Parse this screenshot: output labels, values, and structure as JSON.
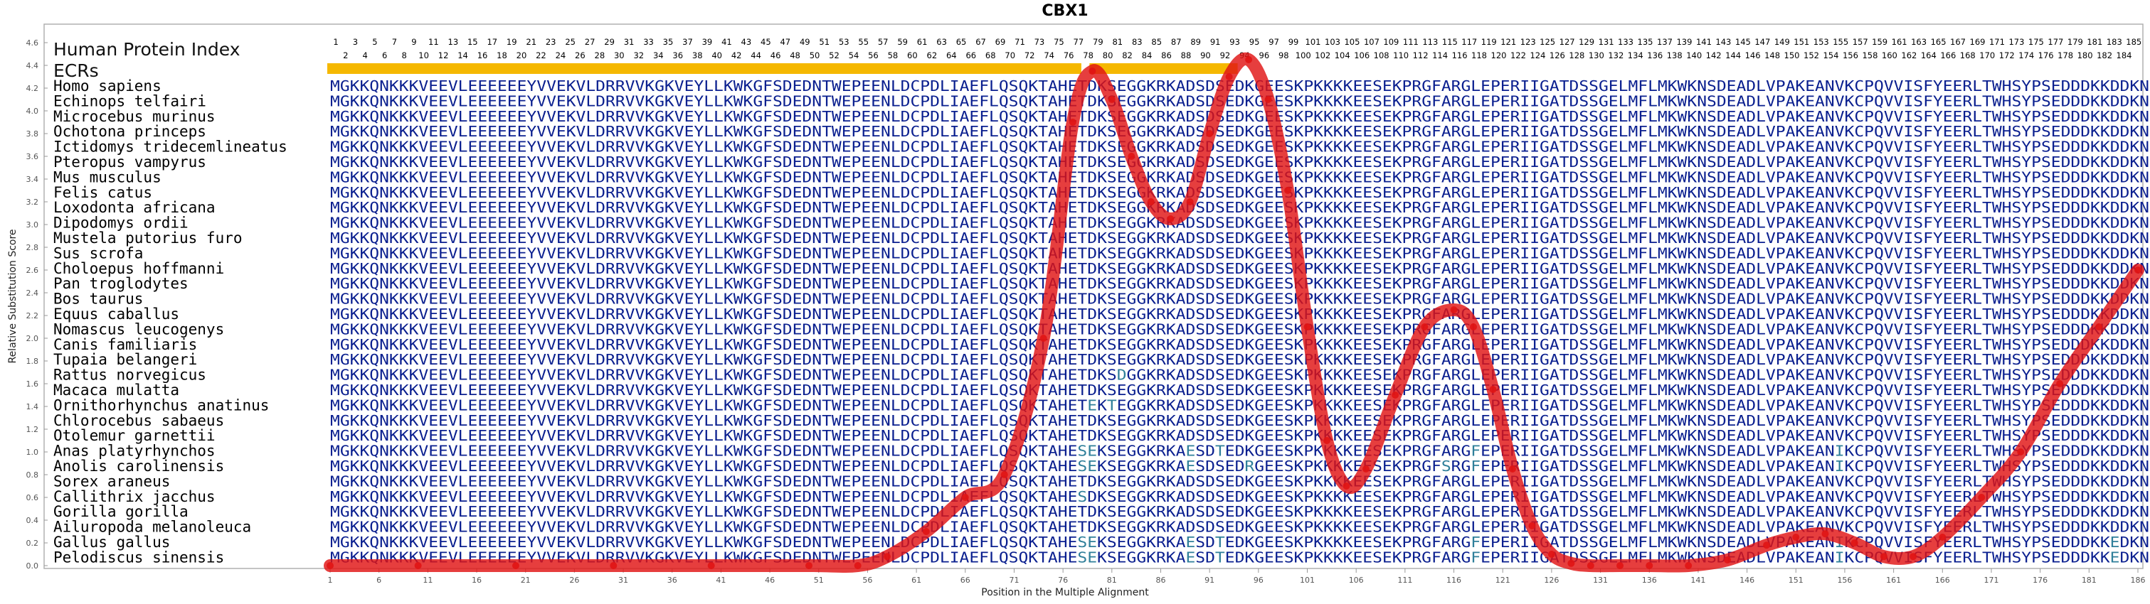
{
  "chart_data": {
    "type": "line",
    "title": "CBX1",
    "xlabel": "Position in the Multiple Alignment",
    "ylabel": "Relative Substitution Score",
    "xlim": [
      1,
      186
    ],
    "ylim": [
      0,
      4.6
    ],
    "yticks": [
      "0.0",
      "0.2",
      "0.4",
      "0.6",
      "0.8",
      "1.0",
      "1.2",
      "1.4",
      "1.6",
      "1.8",
      "2.0",
      "2.2",
      "2.4",
      "2.6",
      "2.8",
      "3.0",
      "3.2",
      "3.4",
      "3.6",
      "3.8",
      "4.0",
      "4.2",
      "4.4",
      "4.6"
    ],
    "xticks": [
      1,
      6,
      11,
      16,
      21,
      26,
      31,
      36,
      41,
      46,
      51,
      56,
      61,
      66,
      71,
      76,
      81,
      86,
      91,
      96,
      101,
      106,
      111,
      116,
      121,
      126,
      131,
      136,
      141,
      146,
      151,
      156,
      161,
      166,
      171,
      176,
      181,
      186
    ],
    "human_protein_index_label": "Human Protein Index",
    "ecr_label": "ECRs",
    "hpi_start": 1,
    "hpi_end": 185,
    "ecr_ranges": [
      [
        1,
        77
      ],
      [
        79,
        93
      ]
    ],
    "colors": {
      "curve": "#e01414",
      "ecr_bar": "#f5b800",
      "conserved_residue": "#0a1f8f",
      "variable_residue": "#2f7f9a",
      "frame": "#b0b0b0"
    },
    "x": [
      1,
      10,
      20,
      30,
      40,
      50,
      55,
      58,
      62,
      66,
      70,
      74,
      77,
      79,
      81,
      83,
      85,
      87,
      89,
      91,
      93,
      95,
      97,
      99,
      101,
      103,
      105,
      107,
      110,
      113,
      116,
      118,
      120,
      122,
      124,
      126,
      128,
      130,
      133,
      136,
      140,
      144,
      148,
      151,
      154,
      157,
      160,
      163,
      166,
      170,
      174,
      178,
      182,
      186
    ],
    "y": [
      0.0,
      0.0,
      0.0,
      0.0,
      0.0,
      0.0,
      0.0,
      0.08,
      0.3,
      0.6,
      0.8,
      2.0,
      3.9,
      4.35,
      4.1,
      3.6,
      3.2,
      3.05,
      3.2,
      3.8,
      4.3,
      4.45,
      4.1,
      3.3,
      2.1,
      1.1,
      0.7,
      0.85,
      1.5,
      2.1,
      2.25,
      2.1,
      1.55,
      0.85,
      0.35,
      0.1,
      0.02,
      0.0,
      0.0,
      0.0,
      0.0,
      0.05,
      0.18,
      0.25,
      0.28,
      0.2,
      0.08,
      0.08,
      0.25,
      0.6,
      1.0,
      1.6,
      2.1,
      2.6
    ]
  },
  "species": [
    "Homo sapiens",
    "Echinops telfairi",
    "Microcebus murinus",
    "Ochotona princeps",
    "Ictidomys tridecemlineatus",
    "Pteropus vampyrus",
    "Mus musculus",
    "Felis catus",
    "Loxodonta africana",
    "Dipodomys ordii",
    "Mustela putorius furo",
    "Sus scrofa",
    "Choloepus hoffmanni",
    "Pan troglodytes",
    "Bos taurus",
    "Equus caballus",
    "Nomascus leucogenys",
    "Canis familiaris",
    "Tupaia belangeri",
    "Rattus norvegicus",
    "Macaca mulatta",
    "Ornithorhynchus anatinus",
    "Chlorocebus sabaeus",
    "Otolemur garnettii",
    "Anas platyrhynchos",
    "Anolis carolinensis",
    "Sorex araneus",
    "Callithrix jacchus",
    "Gorilla gorilla",
    "Ailuropoda melanoleuca",
    "Gallus gallus",
    "Pelodiscus sinensis"
  ],
  "sequences": [
    "MGKKQNKKKVEEVLEEEEEEYVVEKVLDRRVVKGKVEYLLKWKGFSDEDNTWEPEENLDCPDLIAEFLQSQKTAHETDKSEGGKRKADSDSEDKGEESKPKKKKEESEKPRGFARGLEPERIIGATDSSGELMFLMKWKNSDEADLVPAKEANVKCPQVVISFYEERLTWHSYPSEDDDKKDDKN",
    "MGKKQNKKKVEEVLEEEEEEYVVEKVLDRRVVKGKVEYLLKWKGFSDEDNTWEPEENLDCPDLIAEFLQSQKTAHETDKSEGGKRKADSDSEDKGEESKPKKKKEESEKPRGFARGLEPERIIGATDSSGELMFLMKWKNSDEADLVPAKEANVKCPQVVISFYEERLTWHSYPSEDDDKKDDKN",
    "MGKKQNKKKVEEVLEEEEEEYVVEKVLDRRVVKGKVEYLLKWKGFSDEDNTWEPEENLDCPDLIAEFLQSQKTAHETDKSEGGKRKADSDSEDKGEESKPKKKKEESEKPRGFARGLEPERIIGATDSSGELMFLMKWKNSDEADLVPAKEANVKCPQVVISFYEERLTWHSYPSEDDDKKDDKN",
    "MGKKQNKKKVEEVLEEEEEEYVVEKVLDRRVVKGKVEYLLKWKGFSDEDNTWEPEENLDCPDLIAEFLQSQKTAHETDKSEGGKRKADSDSEDKGEESKPKKKKEESEKPRGFARGLEPERIIGATDSSGELMFLMKWKNSDEADLVPAKEANVKCPQVVISFYEERLTWHSYPSEDDDKKDDKN",
    "MGKKQNKKKVEEVLEEEEEEYVVEKVLDRRVVKGKVEYLLKWKGFSDEDNTWEPEENLDCPDLIAEFLQSQKTAHETDKSEGGKRKADSDSEDKGEESKPKKKKEESEKPRGFARGLEPERIIGATDSSGELMFLMKWKNSDEADLVPAKEANVKCPQVVISFYEERLTWHSYPSEDDDKKDDKN",
    "MGKKQNKKKVEEVLEEEEEEYVVEKVLDRRVVKGKVEYLLKWKGFSDEDNTWEPEENLDCPDLIAEFLQSQKTAHETDKSEGGKRKADSDSEDKGEESKPKKKKEESEKPRGFARGLEPERIIGATDSSGELMFLMKWKNSDEADLVPAKEANVKCPQVVISFYEERLTWHSYPSEDDDKKDDKN",
    "MGKKQNKKKVEEVLEEEEEEYVVEKVLDRRVVKGKVEYLLKWKGFSDEDNTWEPEENLDCPDLIAEFLQSQKTAHETDKSEGGKRKADSDSEDKGEESKPKKKKEESEKPRGFARGLEPERIIGATDSSGELMFLMKWKNSDEADLVPAKEANVKCPQVVISFYEERLTWHSYPSEDDDKKDDKN",
    "MGKKQNKKKVEEVLEEEEEEYVVEKVLDRRVVKGKVEYLLKWKGFSDEDNTWEPEENLDCPDLIAEFLQSQKTAHETDKSEGGKRKADSDSEDKGEESKPKKKKEESEKPRGFARGLEPERIIGATDSSGELMFLMKWKNSDEADLVPAKEANVKCPQVVISFYEERLTWHSYPSEDDDKKDDKN",
    "MGKKQNKKKVEEVLEEEEEEYVVEKVLDRRVVKGKVEYLLKWKGFSDEDNTWEPEENLDCPDLIAEFLQSQKTAHETDKSEGGKRKADSDSEDKGEESKPKKKKEESEKPRGFARGLEPERIIGATDSSGELMFLMKWKNSDEADLVPAKEANVKCPQVVISFYEERLTWHSYPSEDDDKKDDKN",
    "MGKKQNKKKVEEVLEEEEEEYVVEKVLDRRVVKGKVEYLLKWKGFSDEDNTWEPEENLDCPDLIAEFLQSQKTAHETDKSEGGKRKADSDSEDKGEESKPKKKKEESEKPRGFARGLEPERIIGATDSSGELMFLMKWKNSDEADLVPAKEANVKCPQVVISFYEERLTWHSYPSEDDDKKDDKN",
    "MGKKQNKKKVEEVLEEEEEEYVVEKVLDRRVVKGKVEYLLKWKGFSDEDNTWEPEENLDCPDLIAEFLQSQKTAHETDKSEGGKRKADSDSEDKGEESKPKKKKEESEKPRGFARGLEPERIIGATDSSGELMFLMKWKNSDEADLVPAKEANVKCPQVVISFYEERLTWHSYPSEDDDKKDDKN",
    "MGKKQNKKKVEEVLEEEEEEYVVEKVLDRRVVKGKVEYLLKWKGFSDEDNTWEPEENLDCPDLIAEFLQSQKTAHETDKSEGGKRKADSDSEDKGEESKPKKKKEESEKPRGFARGLEPERIIGATDSSGELMFLMKWKNSDEADLVPAKEANVKCPQVVISFYEERLTWHSYPSEDDDKKDDKN",
    "MGKKQNKKKVEEVLEEEEEEYVVEKVLDRRVVKGKVEYLLKWKGFSDEDNTWEPEENLDCPDLIAEFLQSQKTAHETDKSEGGKRKADSDSEDKGEESKPKKKKEESEKPRGFARGLEPERIIGATDSSGELMFLMKWKNSDEADLVPAKEANVKCPQVVISFYEERLTWHSYPSEDDDKKDDKN",
    "MGKKQNKKKVEEVLEEEEEEYVVEKVLDRRVVKGKVEYLLKWKGFSDEDNTWEPEENLDCPDLIAEFLQSQKTAHETDKSEGGKRKADSDSEDKGEESKPKKKKEESEKPRGFARGLEPERIIGATDSSGELMFLMKWKNSDEADLVPAKEANVKCPQVVISFYEERLTWHSYPSEDDDKKDDKN",
    "MGKKQNKKKVEEVLEEEEEEYVVEKVLDRRVVKGKVEYLLKWKGFSDEDNTWEPEENLDCPDLIAEFLQSQKTAHETDKSEGGKRKADSDSEDKGEESKPKKKKEESEKPRGFARGLEPERIIGATDSSGELMFLMKWKNSDEADLVPAKEANVKCPQVVISFYEERLTWHSYPSEDDDKKDDKN",
    "MGKKQNKKKVEEVLEEEEEEYVVEKVLDRRVVKGKVEYLLKWKGFSDEDNTWEPEENLDCPDLIAEFLQSQKTAHETDKSEGGKRKADSDSEDKGEESKPKKKKEESEKPRGFARGLEPERIIGATDSSGELMFLMKWKNSDEADLVPAKEANVKCPQVVISFYEERLTWHSYPSEDDDKKDDKN",
    "MGKKQNKKKVEEVLEEEEEEYVVEKVLDRRVVKGKVEYLLKWKGFSDEDNTWEPEENLDCPDLIAEFLQSQKTAHETDKSEGGKRKADSDSEDKGEESKPKKKKEESEKPRGFARGLEPERIIGATDSSGELMFLMKWKNSDEADLVPAKEANVKCPQVVISFYEERLTWHSYPSEDDDKKDDKN",
    "MGKKQNKKKVEEVLEEEEEEYVVEKVLDRRVVKGKVEYLLKWKGFSDEDNTWEPEENLDCPDLIAEFLQSQKTAHETDKSEGGKRKADSDSEDKGEESKPKKKKEESEKPRGFARGLEPERIIGATDSSGELMFLMKWKNSDEADLVPAKEANVKCPQVVISFYEERLTWHSYPSEDDDKKDDKN",
    "MGKKQNKKKVEEVLEEEEEEYVVEKVLDRRVVKGKVEYLLKWKGFSDEDNTWEPEENLDCPDLIAEFLQSQKTAHETDKSEGGKRKADSDSEDKGEESKPKKKKEESEKPRGFARGLEPERIIGATDSSGELMFLMKWKNSDEADLVPAKEANVKCPQVVISFYEERLTWHSYPSEDDDKKDDKN",
    "MGKKQNKKKVEEVLEEEEEEYVVEKVLDRRVVKGKVEYLLKWKGFSDEDNTWEPEENLDCPDLIAEFLQSQKTAHETDKSDGGKRKADSDSEDKGEESKPKKKKEESEKPRGFARGLEPERIIGATDSSGELMFLMKWKNSDEADLVPAKEANVKCPQVVISFYEERLTWHSYPSEDDDKKDDKN",
    "MGKKQNKKKVEEVLEEEEEEYVVEKVLDRRVVKGKVEYLLKWKGFSDEDNTWEPEENLDCPDLIAEFLQSQKTAHETDKSEGGKRKADSDSEDKGEESKPKKKKEESEKPRGFARGLEPERIIGATDSSGELMFLMKWKNSDEADLVPAKEANVKCPQVVISFYEERLTWHSYPSEDDDKKDDKN",
    "MGKKQNKKKVEEVLEEEEEEYVVEKVLDRRVVKGKVEYLLKWKGFSDEDNTWEPEENLDCPDLIAEFLQSQKTAHETEKTEGGKRKADSDSEDKGEESKPKKKKEESEKPRGFARGLEPERIIGATDSSGELMFLMKWKNSDEADLVPAKEANVKCPQVVISFYEERLTWHSYPSEDDDKKDDKN",
    "MGKKQNKKKVEEVLEEEEEEYVVEKVLDRRVVKGKVEYLLKWKGFSDEDNTWEPEENLDCPDLIAEFLQSQKTAHETDKSEGGKRKADSDSEDKGEESKPKKKKEESEKPRGFARGLEPERIIGATDSSGELMFLMKWKNSDEADLVPAKEANVKCPQVVISFYEERLTWHSYPSEDDDKKDDKN",
    "MGKKQNKKKVEEVLEEEEEEYVVEKVLDRRVVKGKVEYLLKWKGFSDEDNTWEPEENLDCPDLIAEFLQSQKTAHETDKSEGGKRKADSDSEDKGEESKPKKKKEESEKPRGFARGLEPERIIGATDSSGELMFLMKWKNSDEADLVPAKEANVKCPQVVISFYEERLTWHSYPSEDDDKKDDKN",
    "MGKKQNKKKVEEVLEEEEEEYVVEKVLDRRVVKGKVEYLLKWKGFSDEDNTWEPEENLDCPDLIAEFLQSQKTAHESEKSEGGKRKAESDTEDKGEESKPKKKKEESEKPRGFARGFEPERIIGATDSSGELMFLMKWKNSDEADLVPAKEANIKCPQVVISFYEERLTWHSYPSEDDDKKDDKN",
    "MGKKQNKKKVEEVLEEEEEEYVVEKVLDRRVVKGKVEYLLKWKGFSDEDNTWEPEENLDCPDLIAEFLQSQKTAHESEKSEGGKRKAESDSEDRGEESKPKKKKEESEKPRGFSRGFEPERIIGATDSSGELMFLMKWKNSDEADLVPAKEANIKCPQVVISFYEERLTWHSYPSEDDDKKDDKN",
    "MGKKQNKKKVEEVLEEEEEEYVVEKVLDRRVVKGKVEYLLKWKGFSDEDNTWEPEENLDCPDLIAEFLQSQKTAHETDKSEGGKRKADSDSEDKGEESKPKKKKEESEKPRGFARGLEPERIIGATDSSGELMFLMKWKNSDEADLVPAKEANVKCPQVVISFYEERLTWHSYPSEDDDKKDDKN",
    "MGKKQNKKKVEEVLEEEEEEYVVEKVLDRRVVKGKVEYLLKWKGFSDEDNTWEPEENLDCPDLIAEFLQSQKTAHESDKSEGGKRKADSDSEDKGEESKPKKKKEESEKPRGFARGLEPERIIGATDSSGELMFLMKWKNSDEADLVPAKEANVKCPQVVISFYEERLTWHSYPSEDDDKKDDKN",
    "MGKKQNKKKVEEVLEEEEEEYVVEKVLDRRVVKGKVEYLLKWKGFSDEDNTWEPEENLDCPDLIAEFLQSQKTAHETDKSEGGKRKADSDSEDKGEESKPKKKKEESEKPRGFARGLEPERIIGATDSSGELMFLMKWKNSDEADLVPAKEANVKCPQVVISFYEERLTWHSYPSEDDDKKDDKN",
    "MGKKQNKKKVEEVLEEEEEEYVVEKVLDRRVVKGKVEYLLKWKGFSDEDNTWEPEENLDCPDLIAEFLQSQKTAHETDKSEGGKRKADSDSEDKGEESKPKKKKEESEKPRGFARGLEPERIIGATDSSGELMFLMKWKNSDEADLVPAKEANVKCPQVVISFYEERLTWHSYPSEDDDKKDDKN",
    "MGKKQNKKKVEEVLEEEEEEYVVEKVLDRRVVKGKVEYLLKWKGFSDEDNTWEPEENLDCPDLIAEFLQSQKTAHESEKSEGGKRKAESDTEDKGEESKPKKKKEESEKPRGFARGFEPERIIGATDSSGELMFLMKWKNSDEADLVPAKEANIKCPQVVISFYEERLTWHSYPSEDDDKKEDKN",
    "MGKKQNKKKVEEVLEEEEEEYVVEKVLDRRVVKGKVEYLLKWKGFSDEDNTWEPEENLDCPDLIAEFLQSQKTAHESEKSEGGKRKAESDTEDKGEESKPKKKKEESEKPRGFARGFEPERIIGATDSSGELMFLMKWKNSDEADLVPAKEANIKCPQVVISFYEERLTWHSYPSEDDDKKEDKN"
  ]
}
